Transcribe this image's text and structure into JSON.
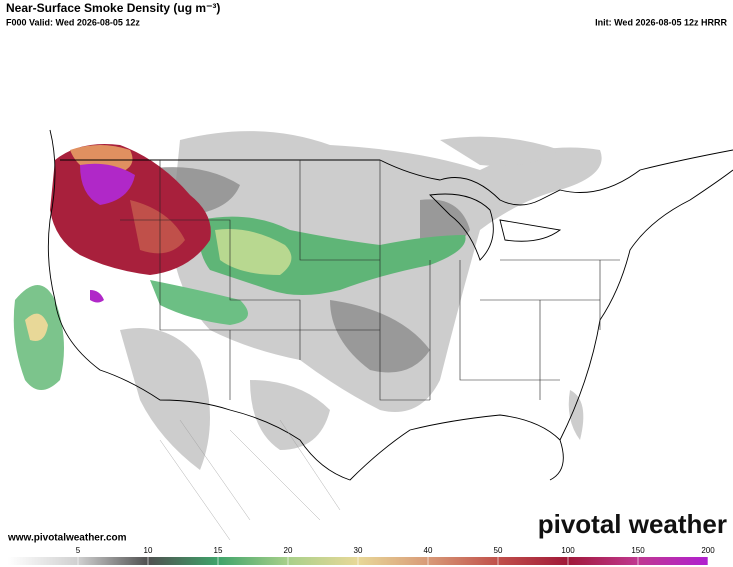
{
  "header": {
    "title": "Near-Surface Smoke Density (ug m⁻³)",
    "valid": "F000 Valid: Wed 2026-08-05 12z",
    "init": "Init: Wed 2026-08-05 12z HRRR"
  },
  "footer": {
    "url": "www.pivotalweather.com",
    "logo": "pivotal weather"
  },
  "colorbar": {
    "ticks": [
      5,
      10,
      15,
      20,
      30,
      40,
      50,
      100,
      150,
      200
    ],
    "colors": [
      "#ffffff",
      "#d0d0d0",
      "#505050",
      "#3fa36a",
      "#a8d08a",
      "#e8d898",
      "#d89a78",
      "#c0504a",
      "#a01838",
      "#c03890",
      "#b020d0"
    ]
  }
}
